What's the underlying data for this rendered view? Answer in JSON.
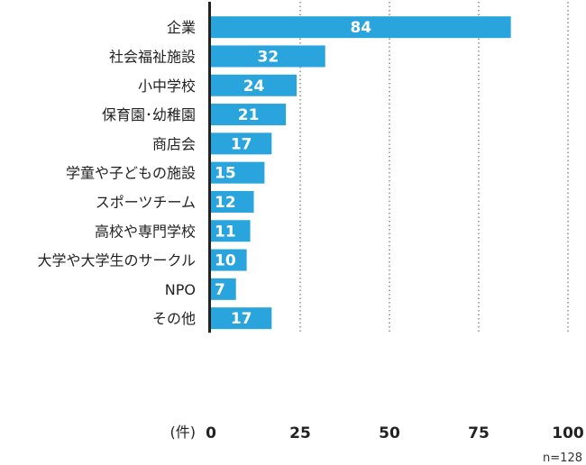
{
  "chart_data": {
    "type": "bar",
    "orientation": "horizontal",
    "categories": [
      "企業",
      "社会福祉施設",
      "小中学校",
      "保育園･幼稚園",
      "商店会",
      "学童や子どもの施設",
      "スポーツチーム",
      "高校や専門学校",
      "大学や大学生のサークル",
      "NPO",
      "その他"
    ],
    "values": [
      84,
      32,
      24,
      21,
      17,
      15,
      12,
      11,
      10,
      7,
      17
    ],
    "xlim": [
      0,
      100
    ],
    "xticks": [
      0,
      25,
      50,
      75,
      100
    ],
    "xlabel": "(件)",
    "note": "n=128",
    "grid": "vertical-dotted",
    "bar_color": "#2aa4dc"
  }
}
